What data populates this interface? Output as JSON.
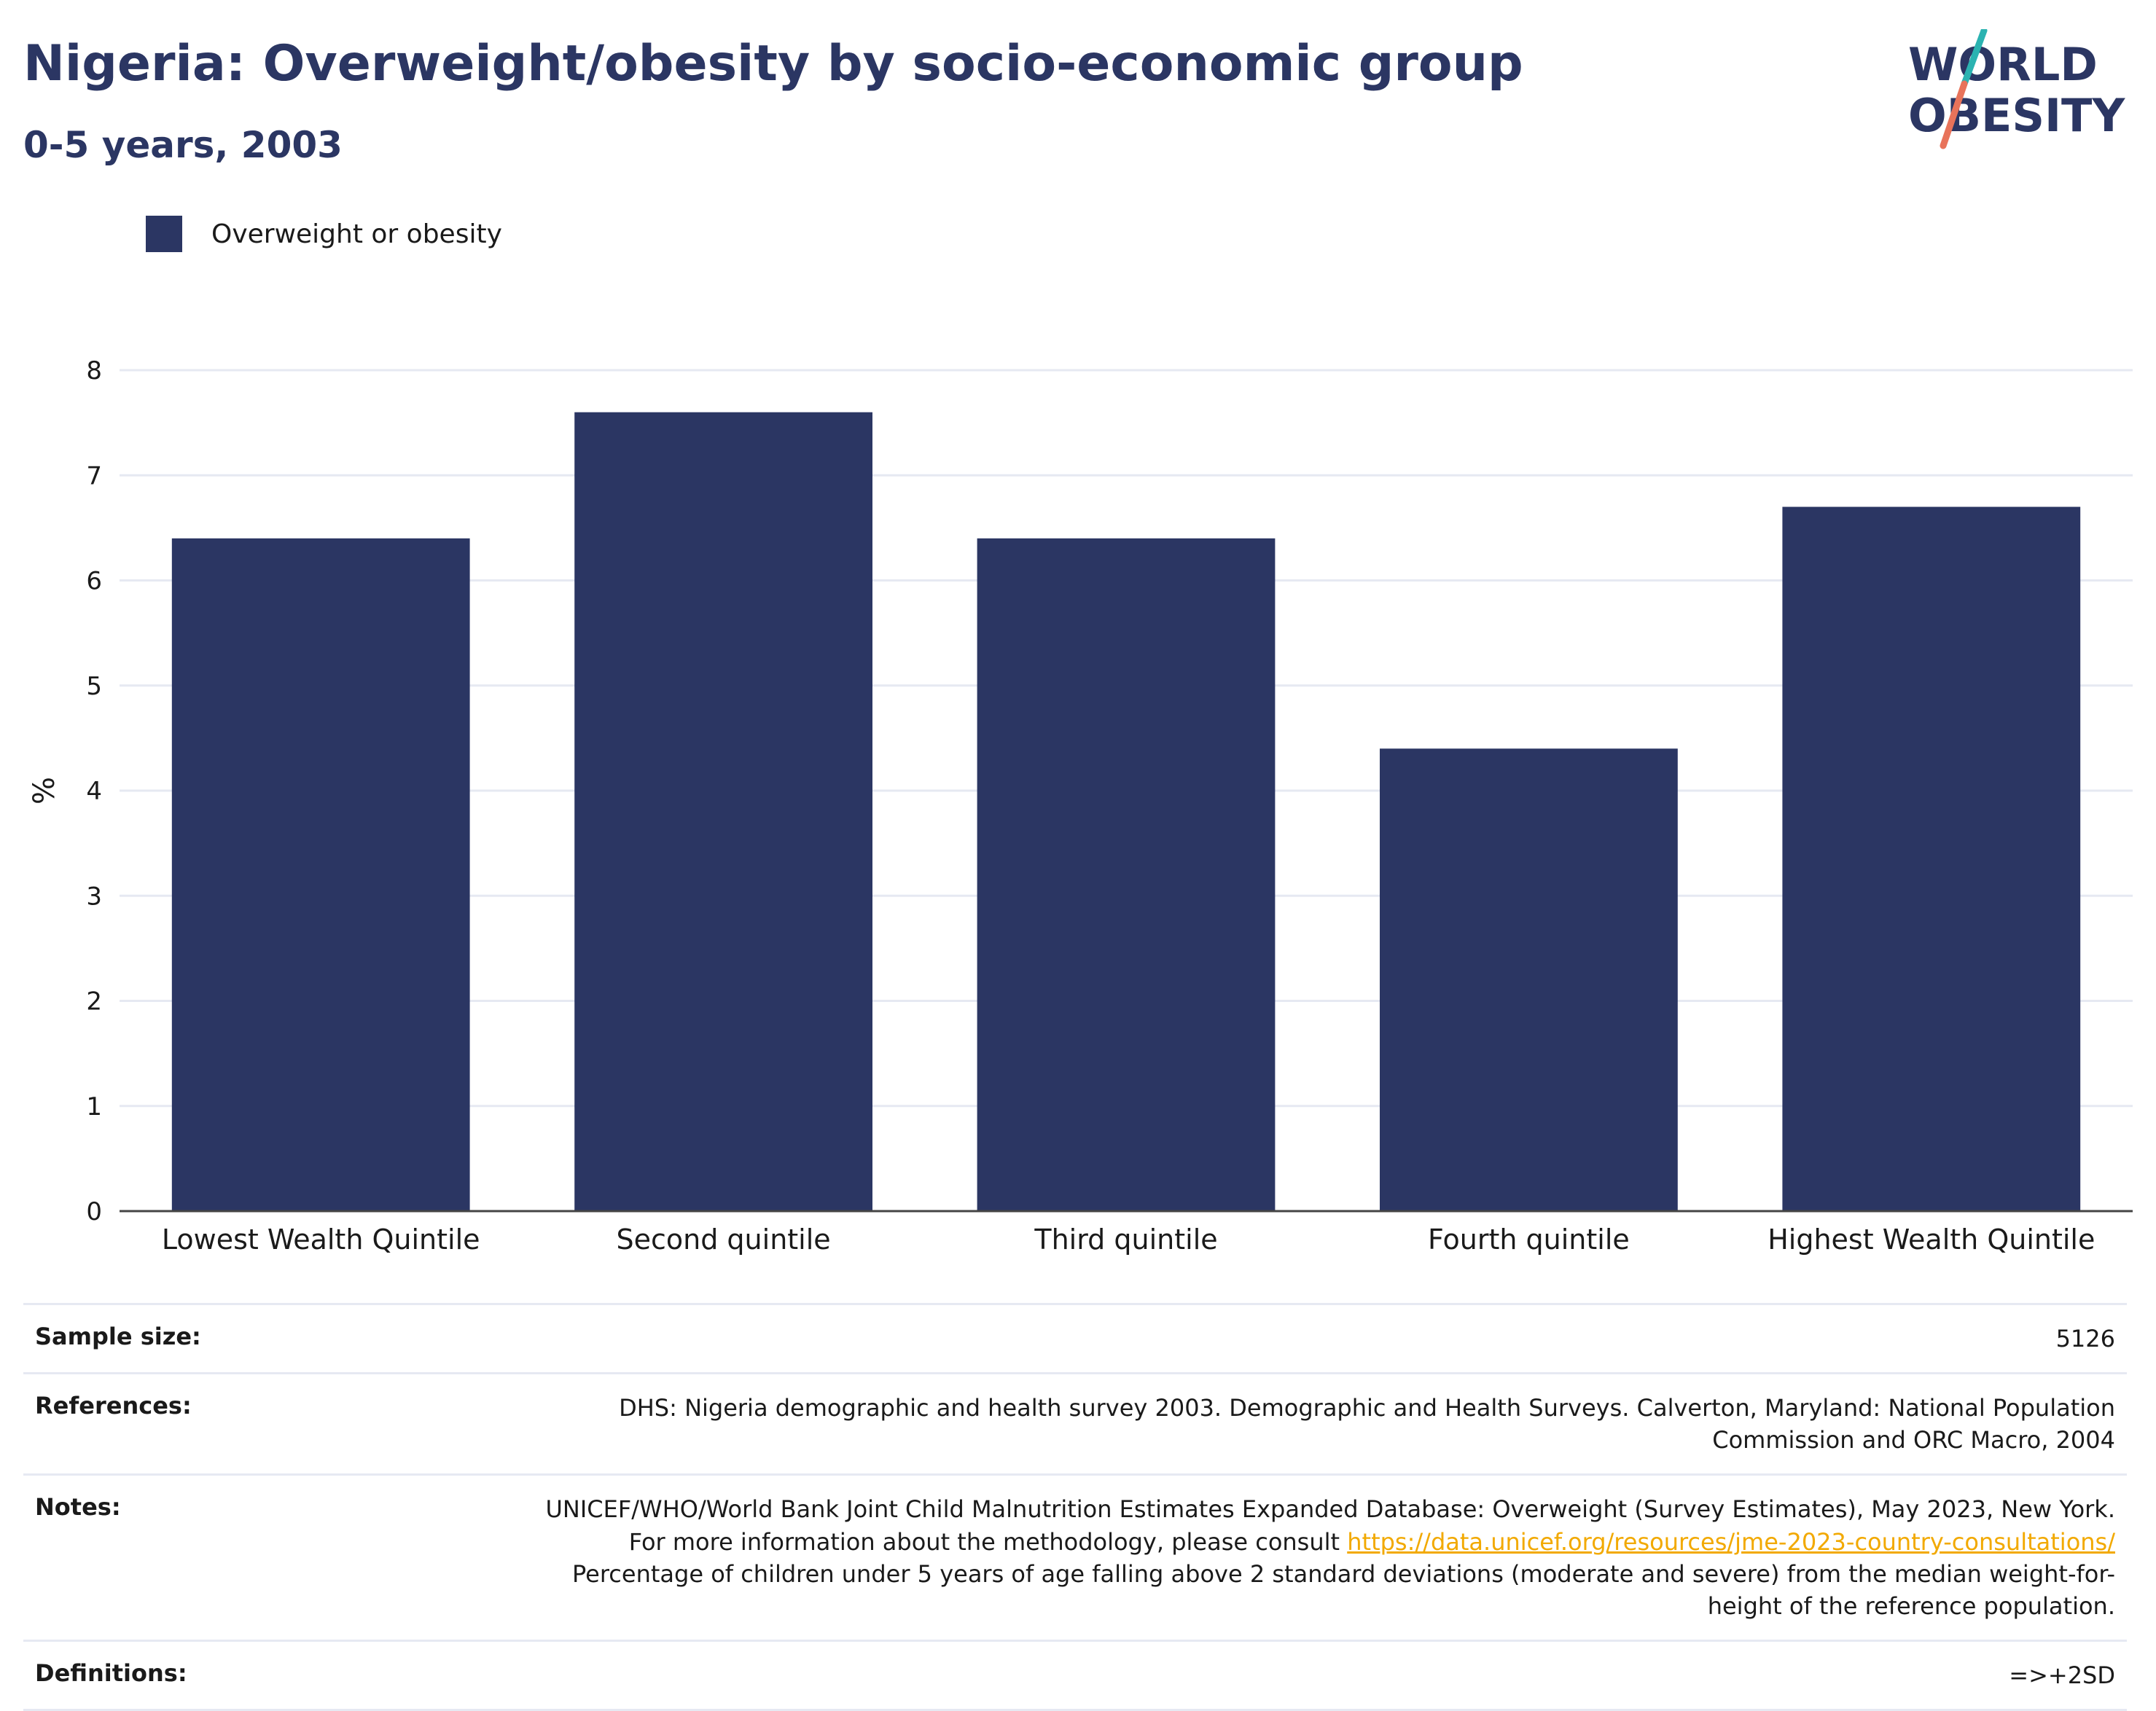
{
  "header": {
    "title": "Nigeria: Overweight/obesity by socio-economic group",
    "subtitle": "0-5 years, 2003"
  },
  "logo": {
    "line1": "WORLD",
    "line2": "OBESITY"
  },
  "legend": {
    "label": "Overweight or obesity",
    "color": "#2b3663"
  },
  "chart_data": {
    "type": "bar",
    "categories": [
      "Lowest Wealth Quintile",
      "Second quintile",
      "Third quintile",
      "Fourth quintile",
      "Highest Wealth Quintile"
    ],
    "series": [
      {
        "name": "Overweight or obesity",
        "values": [
          6.4,
          7.6,
          6.4,
          4.4,
          6.7
        ]
      }
    ],
    "ylabel": "%",
    "ylim": [
      0,
      8
    ],
    "yticks": [
      0,
      1,
      2,
      3,
      4,
      5,
      6,
      7,
      8
    ],
    "grid": true,
    "legend_position": "top-left",
    "bar_color": "#2b3663"
  },
  "info": {
    "sample_size_label": "Sample size:",
    "sample_size_value": "5126",
    "references_label": "References:",
    "references_value": "DHS: Nigeria demographic and health survey 2003. Demographic and Health Surveys. Calverton, Maryland: National Population Commission and ORC Macro, 2004",
    "notes_label": "Notes:",
    "notes_text_1": "UNICEF/WHO/World Bank Joint Child Malnutrition Estimates Expanded Database: Overweight (Survey Estimates), May 2023, New York. For more information about the methodology, please consult ",
    "notes_link": "https://data.unicef.org/resources/jme-2023-country-consultations/",
    "notes_text_2": " Percentage of children under 5 years of age falling above 2 standard deviations (moderate and severe) from the median weight-for-height of the reference population.",
    "definitions_label": "Definitions:",
    "definitions_value": "=>+2SD"
  }
}
